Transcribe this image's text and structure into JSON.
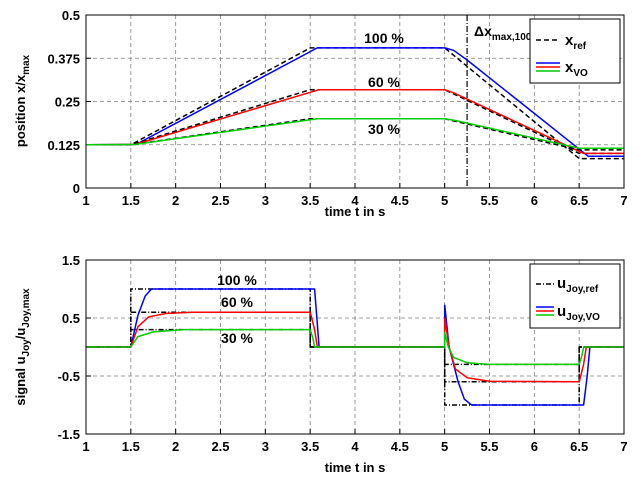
{
  "chart_data": [
    {
      "type": "line",
      "xlabel": "time t in s",
      "ylabel_main": "position x/x",
      "ylabel_sub": "max",
      "xlim": [
        1,
        7
      ],
      "ylim": [
        0,
        0.5
      ],
      "xticks": [
        "1",
        "1.5",
        "2",
        "2.5",
        "3",
        "3.5",
        "4",
        "4.5",
        "5",
        "5.5",
        "6",
        "6.5",
        "7"
      ],
      "yticks": [
        "0",
        "0.125",
        "0.25",
        "0.375",
        "0.5"
      ],
      "grid": true,
      "legend_position": "top-right",
      "legend": [
        {
          "main": "x",
          "sub": "ref",
          "color": "#000000",
          "dash": "5,3"
        },
        {
          "main": "x",
          "sub": "VO",
          "color": "#0000ff",
          "dash": ""
        }
      ],
      "annotations": {
        "percent_100": "100 %",
        "percent_60": "60 %",
        "percent_30": "30 %",
        "delta_main": "Δx",
        "delta_sub": "max,100"
      },
      "vline_x": 5.25,
      "series": [
        {
          "name": "x ref (100 %)",
          "color": "#000000",
          "dash": "5,3",
          "points": [
            [
              1,
              0.125
            ],
            [
              1.5,
              0.125
            ],
            [
              3.5,
              0.405
            ],
            [
              5,
              0.405
            ],
            [
              6.5,
              0.085
            ],
            [
              7,
              0.085
            ]
          ]
        },
        {
          "name": "x VO (100 %)",
          "color": "#0000ff",
          "dash": "",
          "points": [
            [
              1,
              0.125
            ],
            [
              1.56,
              0.126
            ],
            [
              3.58,
              0.405
            ],
            [
              5,
              0.405
            ],
            [
              5.1,
              0.398
            ],
            [
              5.25,
              0.37
            ],
            [
              6.6,
              0.092
            ],
            [
              7,
              0.092
            ]
          ]
        },
        {
          "name": "x ref (60 %)",
          "color": "#000000",
          "dash": "5,3",
          "points": [
            [
              1,
              0.125
            ],
            [
              1.5,
              0.125
            ],
            [
              3.5,
              0.284
            ],
            [
              5,
              0.284
            ],
            [
              6.5,
              0.1
            ],
            [
              7,
              0.1
            ]
          ]
        },
        {
          "name": "x VO (60 %)",
          "color": "#ff0000",
          "dash": "",
          "points": [
            [
              1,
              0.125
            ],
            [
              1.55,
              0.126
            ],
            [
              3.6,
              0.284
            ],
            [
              5,
              0.284
            ],
            [
              5.1,
              0.275
            ],
            [
              6.55,
              0.1
            ],
            [
              7,
              0.1
            ]
          ]
        },
        {
          "name": "x ref (30 %)",
          "color": "#000000",
          "dash": "5,3",
          "points": [
            [
              1,
              0.125
            ],
            [
              1.5,
              0.125
            ],
            [
              3.5,
              0.2
            ],
            [
              5,
              0.2
            ],
            [
              6.5,
              0.11
            ],
            [
              7,
              0.11
            ]
          ]
        },
        {
          "name": "x VO (30 %)",
          "color": "#00cc00",
          "dash": "",
          "points": [
            [
              1,
              0.125
            ],
            [
              1.55,
              0.126
            ],
            [
              3.58,
              0.2
            ],
            [
              5,
              0.2
            ],
            [
              5.12,
              0.195
            ],
            [
              6.5,
              0.115
            ],
            [
              7,
              0.115
            ]
          ]
        }
      ]
    },
    {
      "type": "line",
      "xlabel": "time t in s",
      "ylabel_main": "signal u",
      "ylabel_sub1": "Joy",
      "ylabel_mid": "/u",
      "ylabel_sub2": "Joy,max",
      "xlim": [
        1,
        7
      ],
      "ylim": [
        -1.5,
        1.5
      ],
      "xticks": [
        "1",
        "1.5",
        "2",
        "2.5",
        "3",
        "3.5",
        "4",
        "4.5",
        "5",
        "5.5",
        "6",
        "6.5",
        "7"
      ],
      "yticks": [
        "-1.5",
        "-0.5",
        "0.5",
        "1.5"
      ],
      "grid": true,
      "legend_position": "top-right",
      "legend": [
        {
          "main": "u",
          "sub": "Joy,ref",
          "color": "#000000",
          "dash": "5,2,1,2"
        },
        {
          "main": "u",
          "sub": "Joy,VO",
          "color": "#0000ff",
          "dash": ""
        }
      ],
      "annotations": {
        "percent_100": "100 %",
        "percent_60": "60 %",
        "percent_30": "30 %"
      },
      "series": [
        {
          "name": "u ref (100 %)",
          "color": "#000000",
          "dash": "5,2,1,2",
          "points": [
            [
              1,
              0
            ],
            [
              1.5,
              0
            ],
            [
              1.5,
              1
            ],
            [
              3.5,
              1
            ],
            [
              3.5,
              0
            ],
            [
              5,
              0
            ],
            [
              5,
              -1
            ],
            [
              6.5,
              -1
            ],
            [
              6.5,
              0
            ],
            [
              7,
              0
            ]
          ]
        },
        {
          "name": "u ref (60 %)",
          "color": "#000000",
          "dash": "5,2,1,2",
          "points": [
            [
              1,
              0
            ],
            [
              1.5,
              0
            ],
            [
              1.5,
              0.6
            ],
            [
              3.5,
              0.6
            ],
            [
              3.5,
              0
            ],
            [
              5,
              0
            ],
            [
              5,
              -0.6
            ],
            [
              6.5,
              -0.6
            ],
            [
              6.5,
              0
            ],
            [
              7,
              0
            ]
          ]
        },
        {
          "name": "u ref (30 %)",
          "color": "#000000",
          "dash": "5,2,1,2",
          "points": [
            [
              1,
              0
            ],
            [
              1.5,
              0
            ],
            [
              1.5,
              0.3
            ],
            [
              3.5,
              0.3
            ],
            [
              3.5,
              0
            ],
            [
              5,
              0
            ],
            [
              5,
              -0.3
            ],
            [
              6.5,
              -0.3
            ],
            [
              6.5,
              0
            ],
            [
              7,
              0
            ]
          ]
        },
        {
          "name": "u VO (100 %)",
          "color": "#0000ff",
          "dash": "",
          "points": [
            [
              1,
              0
            ],
            [
              1.5,
              0
            ],
            [
              1.58,
              0.55
            ],
            [
              1.66,
              0.88
            ],
            [
              1.73,
              1
            ],
            [
              3.55,
              1
            ],
            [
              3.57,
              0.6
            ],
            [
              3.6,
              0
            ],
            [
              5,
              0
            ],
            [
              5,
              0.72
            ],
            [
              5.05,
              0
            ],
            [
              5.15,
              -0.6
            ],
            [
              5.22,
              -0.9
            ],
            [
              5.3,
              -1
            ],
            [
              6.55,
              -1
            ],
            [
              6.59,
              -0.5
            ],
            [
              6.62,
              0
            ],
            [
              7,
              0
            ]
          ]
        },
        {
          "name": "u VO (60 %)",
          "color": "#ff0000",
          "dash": "",
          "points": [
            [
              1,
              0
            ],
            [
              1.5,
              0
            ],
            [
              1.58,
              0.35
            ],
            [
              1.7,
              0.52
            ],
            [
              1.9,
              0.58
            ],
            [
              2.2,
              0.6
            ],
            [
              3.5,
              0.6
            ],
            [
              3.55,
              0.3
            ],
            [
              3.58,
              0
            ],
            [
              5,
              0
            ],
            [
              5,
              0.5
            ],
            [
              5.05,
              0
            ],
            [
              5.12,
              -0.38
            ],
            [
              5.25,
              -0.53
            ],
            [
              5.5,
              -0.59
            ],
            [
              6.5,
              -0.6
            ],
            [
              6.55,
              -0.3
            ],
            [
              6.58,
              0
            ],
            [
              7,
              0
            ]
          ]
        },
        {
          "name": "u VO (30 %)",
          "color": "#00cc00",
          "dash": "",
          "points": [
            [
              1,
              0
            ],
            [
              1.5,
              0
            ],
            [
              1.58,
              0.18
            ],
            [
              1.75,
              0.26
            ],
            [
              2.1,
              0.3
            ],
            [
              3.5,
              0.3
            ],
            [
              3.53,
              0.15
            ],
            [
              3.55,
              0
            ],
            [
              5,
              0
            ],
            [
              5,
              0.25
            ],
            [
              5.04,
              0
            ],
            [
              5.1,
              -0.18
            ],
            [
              5.25,
              -0.27
            ],
            [
              5.5,
              -0.3
            ],
            [
              6.5,
              -0.3
            ],
            [
              6.53,
              -0.15
            ],
            [
              6.55,
              0
            ],
            [
              7,
              0
            ]
          ]
        }
      ]
    }
  ]
}
